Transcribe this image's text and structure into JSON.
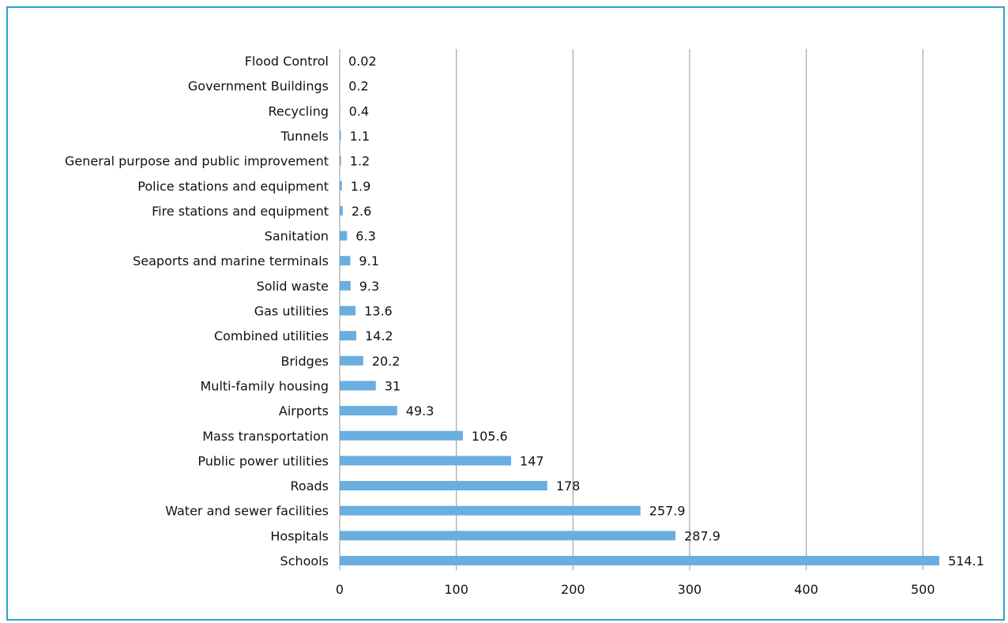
{
  "chart_data": {
    "type": "bar",
    "orientation": "horizontal",
    "categories": [
      "Flood Control",
      "Government Buildings",
      "Recycling",
      "Tunnels",
      "General purpose and public improvement",
      "Police stations and equipment",
      "Fire stations and equipment",
      "Sanitation",
      "Seaports and marine terminals",
      "Solid waste",
      "Gas utilities",
      "Combined utilities",
      "Bridges",
      "Multi-family housing",
      "Airports",
      "Mass transportation",
      "Public power utilities",
      "Roads",
      "Water and sewer facilities",
      "Hospitals",
      "Schools"
    ],
    "values": [
      0.02,
      0.2,
      0.4,
      1.1,
      1.2,
      1.9,
      2.6,
      6.3,
      9.1,
      9.3,
      13.6,
      14.2,
      20.2,
      31,
      49.3,
      105.6,
      147,
      178,
      257.9,
      287.9,
      514.1
    ],
    "value_labels": [
      "0.02",
      "0.2",
      "0.4",
      "1.1",
      "1.2",
      "1.9",
      "2.6",
      "6.3",
      "9.1",
      "9.3",
      "13.6",
      "14.2",
      "20.2",
      "31",
      "49.3",
      "105.6",
      "147",
      "178",
      "257.9",
      "287.9",
      "514.1"
    ],
    "xlim": [
      0,
      530
    ],
    "xticks": [
      "0",
      "100",
      "200",
      "300",
      "400",
      "500"
    ],
    "xtick_values": [
      0,
      100,
      200,
      300,
      400,
      500
    ],
    "grid": true,
    "title": "",
    "xlabel": "",
    "ylabel": "",
    "bar_color": "#6aaee0",
    "grid_color": "#a6a6a6",
    "frame_color": "#2aa3cf"
  }
}
